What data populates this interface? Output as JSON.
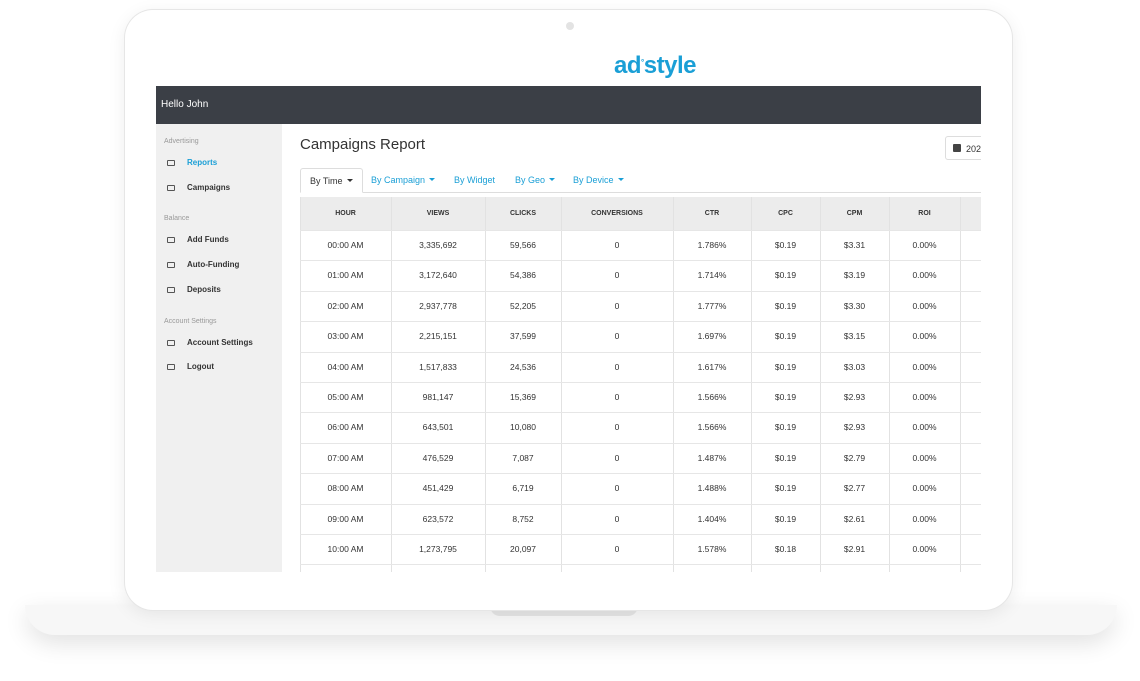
{
  "logo": {
    "left": "ad",
    "right": "style"
  },
  "header": {
    "greeting": "Hello John"
  },
  "sidebar": [
    {
      "section": "Advertising",
      "items": [
        "Reports",
        "Campaigns"
      ]
    },
    {
      "section": "Balance",
      "items": [
        "Add Funds",
        "Auto-Funding",
        "Deposits"
      ]
    },
    {
      "section": "Account Settings",
      "items": [
        "Account Settings",
        "Logout"
      ]
    }
  ],
  "page": {
    "title": "Campaigns Report",
    "date_button": "202"
  },
  "tabs": [
    "By Time",
    "By Campaign",
    "By Widget",
    "By Geo",
    "By Device"
  ],
  "table": {
    "columns": [
      "HOUR",
      "VIEWS",
      "CLICKS",
      "CONVERSIONS",
      "CTR",
      "CPC",
      "CPM",
      "ROI"
    ],
    "rows": [
      [
        "00:00 AM",
        "3,335,692",
        "59,566",
        "0",
        "1.786%",
        "$0.19",
        "$3.31",
        "0.00%"
      ],
      [
        "01:00 AM",
        "3,172,640",
        "54,386",
        "0",
        "1.714%",
        "$0.19",
        "$3.19",
        "0.00%"
      ],
      [
        "02:00 AM",
        "2,937,778",
        "52,205",
        "0",
        "1.777%",
        "$0.19",
        "$3.30",
        "0.00%"
      ],
      [
        "03:00 AM",
        "2,215,151",
        "37,599",
        "0",
        "1.697%",
        "$0.19",
        "$3.15",
        "0.00%"
      ],
      [
        "04:00 AM",
        "1,517,833",
        "24,536",
        "0",
        "1.617%",
        "$0.19",
        "$3.03",
        "0.00%"
      ],
      [
        "05:00 AM",
        "981,147",
        "15,369",
        "0",
        "1.566%",
        "$0.19",
        "$2.93",
        "0.00%"
      ],
      [
        "06:00 AM",
        "643,501",
        "10,080",
        "0",
        "1.566%",
        "$0.19",
        "$2.93",
        "0.00%"
      ],
      [
        "07:00 AM",
        "476,529",
        "7,087",
        "0",
        "1.487%",
        "$0.19",
        "$2.79",
        "0.00%"
      ],
      [
        "08:00 AM",
        "451,429",
        "6,719",
        "0",
        "1.488%",
        "$0.19",
        "$2.77",
        "0.00%"
      ],
      [
        "09:00 AM",
        "623,572",
        "8,752",
        "0",
        "1.404%",
        "$0.19",
        "$2.61",
        "0.00%"
      ],
      [
        "10:00 AM",
        "1,273,795",
        "20,097",
        "0",
        "1.578%",
        "$0.18",
        "$2.91",
        "0.00%"
      ]
    ]
  }
}
